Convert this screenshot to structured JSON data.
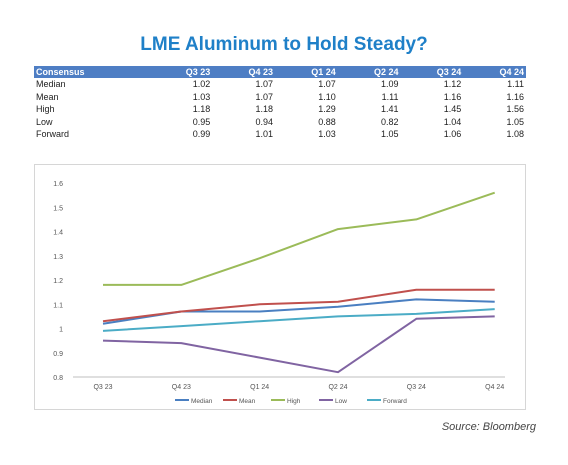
{
  "title": "LME Aluminum to Hold Steady?",
  "table": {
    "header": [
      "Consensus",
      "Q3 23",
      "Q4 23",
      "Q1 24",
      "Q2 24",
      "Q3 24",
      "Q4 24"
    ],
    "rows": [
      {
        "label": "Median",
        "values": [
          "1.02",
          "1.07",
          "1.07",
          "1.09",
          "1.12",
          "1.11"
        ]
      },
      {
        "label": "Mean",
        "values": [
          "1.03",
          "1.07",
          "1.10",
          "1.11",
          "1.16",
          "1.16"
        ]
      },
      {
        "label": "High",
        "values": [
          "1.18",
          "1.18",
          "1.29",
          "1.41",
          "1.45",
          "1.56"
        ]
      },
      {
        "label": "Low",
        "values": [
          "0.95",
          "0.94",
          "0.88",
          "0.82",
          "1.04",
          "1.05"
        ]
      },
      {
        "label": "Forward",
        "values": [
          "0.99",
          "1.01",
          "1.03",
          "1.05",
          "1.06",
          "1.08"
        ]
      }
    ]
  },
  "chart_data": {
    "type": "line",
    "title": "",
    "xlabel": "",
    "ylabel": "",
    "categories": [
      "Q3 23",
      "Q4 23",
      "Q1 24",
      "Q2 24",
      "Q3 24",
      "Q4 24"
    ],
    "ylim": [
      0.8,
      1.6
    ],
    "yticks": [
      "0.8",
      "0.9",
      "1",
      "1.1",
      "1.2",
      "1.3",
      "1.4",
      "1.5",
      "1.6"
    ],
    "grid": false,
    "legend_position": "bottom",
    "series": [
      {
        "name": "Median",
        "color": "#4a7fc1",
        "values": [
          1.02,
          1.07,
          1.07,
          1.09,
          1.12,
          1.11
        ]
      },
      {
        "name": "Mean",
        "color": "#c0504d",
        "values": [
          1.03,
          1.07,
          1.1,
          1.11,
          1.16,
          1.16
        ]
      },
      {
        "name": "High",
        "color": "#9bbb59",
        "values": [
          1.18,
          1.18,
          1.29,
          1.41,
          1.45,
          1.56
        ]
      },
      {
        "name": "Low",
        "color": "#8064a2",
        "values": [
          0.95,
          0.94,
          0.88,
          0.82,
          1.04,
          1.05
        ]
      },
      {
        "name": "Forward",
        "color": "#4bacc6",
        "values": [
          0.99,
          1.01,
          1.03,
          1.05,
          1.06,
          1.08
        ]
      }
    ]
  },
  "source": "Source: Bloomberg"
}
